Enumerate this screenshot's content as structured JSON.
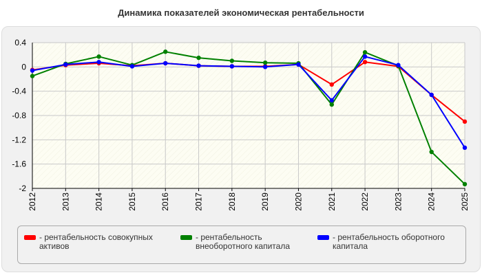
{
  "chart_data": {
    "type": "line",
    "title": "Динамика показателей экономическая рентабельности",
    "x": [
      "2012",
      "2013",
      "2014",
      "2015",
      "2016",
      "2017",
      "2018",
      "2019",
      "2020",
      "2021",
      "2022",
      "2023",
      "2024",
      "2025"
    ],
    "ylim": [
      -2,
      0.4
    ],
    "yticks": [
      0.4,
      0,
      -0.4,
      -0.8,
      -1.2,
      -1.6,
      -2
    ],
    "ytick_labels": [
      "0.4",
      "0",
      "-0.4",
      "-0.8",
      "-1.2",
      "-1.6",
      "-2"
    ],
    "grid": true,
    "legend_position": "bottom",
    "series": [
      {
        "name": "- рентабельность совокупных активов",
        "color": "#ff0000",
        "values": [
          -0.05,
          0.03,
          0.06,
          0.02,
          0.06,
          0.02,
          0.01,
          0.01,
          0.04,
          -0.29,
          0.08,
          0.01,
          -0.46,
          -0.9
        ]
      },
      {
        "name": "- рентабельность внеоборотного капитала",
        "color": "#008000",
        "values": [
          -0.15,
          0.05,
          0.17,
          0.03,
          0.25,
          0.15,
          0.1,
          0.07,
          0.06,
          -0.62,
          0.24,
          0.02,
          -1.4,
          -1.93
        ]
      },
      {
        "name": "- рентабельность оборотного капитала",
        "color": "#0000ff",
        "values": [
          -0.06,
          0.04,
          0.08,
          0.01,
          0.06,
          0.02,
          0.01,
          0.0,
          0.04,
          -0.55,
          0.17,
          0.03,
          -0.46,
          -1.33
        ]
      }
    ]
  }
}
